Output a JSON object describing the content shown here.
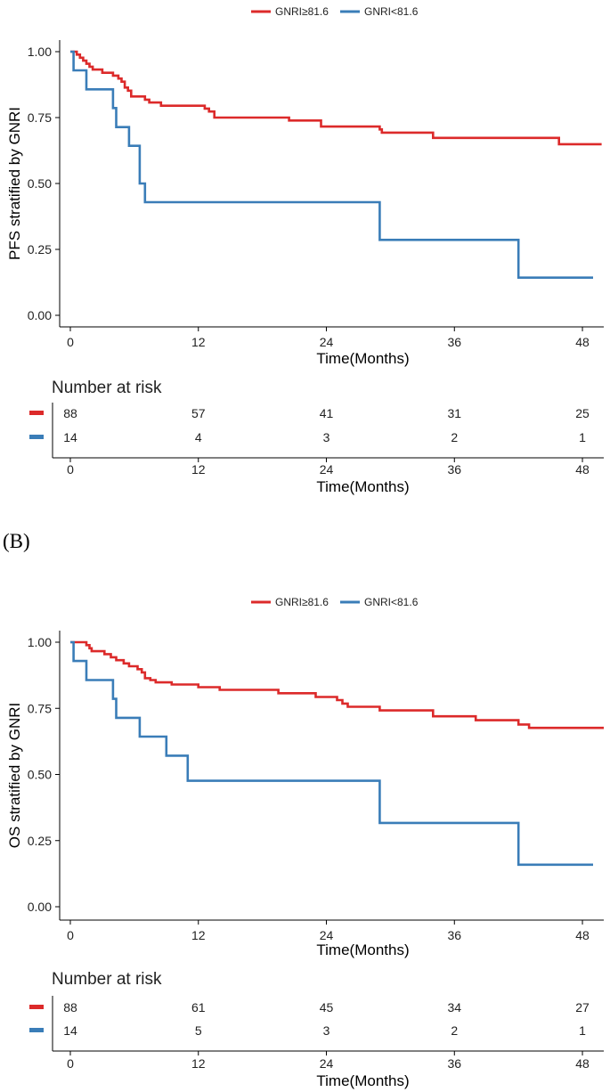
{
  "panel_b_label": "(B)",
  "colors": {
    "high": "#dc2a2a",
    "low": "#3a7db8",
    "axis": "#000000",
    "text": "#222222"
  },
  "chart_data": [
    {
      "type": "line",
      "subtype": "kaplan-meier",
      "legend_position": "top",
      "ylabel": "PFS stratified by GNRI",
      "xlabel": "Time(Months)",
      "xlim": [
        -1,
        50
      ],
      "ylim": [
        0,
        1
      ],
      "x_ticks": [
        0,
        12,
        24,
        36,
        48
      ],
      "y_ticks": [
        "0.00",
        "0.25",
        "0.50",
        "0.75",
        "1.00"
      ],
      "series": [
        {
          "name": "GNRI≥81.6",
          "color": "#dc2a2a",
          "end": 49.8,
          "steps": [
            [
              0,
              1.0
            ],
            [
              0.6,
              0.989
            ],
            [
              0.9,
              0.977
            ],
            [
              1.2,
              0.966
            ],
            [
              1.5,
              0.954
            ],
            [
              1.8,
              0.943
            ],
            [
              2.1,
              0.932
            ],
            [
              3.0,
              0.92
            ],
            [
              4.0,
              0.909
            ],
            [
              4.5,
              0.898
            ],
            [
              4.8,
              0.886
            ],
            [
              5.1,
              0.864
            ],
            [
              5.4,
              0.852
            ],
            [
              5.7,
              0.83
            ],
            [
              7.0,
              0.818
            ],
            [
              7.4,
              0.807
            ],
            [
              8.5,
              0.795
            ],
            [
              12.6,
              0.784
            ],
            [
              13.0,
              0.773
            ],
            [
              13.5,
              0.75
            ],
            [
              20.5,
              0.739
            ],
            [
              23.5,
              0.716
            ],
            [
              29.0,
              0.705
            ],
            [
              29.2,
              0.693
            ],
            [
              34.0,
              0.673
            ],
            [
              45.8,
              0.649
            ]
          ]
        },
        {
          "name": "GNRI<81.6",
          "color": "#3a7db8",
          "end": 49.0,
          "steps": [
            [
              0,
              1.0
            ],
            [
              0.3,
              0.929
            ],
            [
              1.5,
              0.857
            ],
            [
              4.0,
              0.786
            ],
            [
              4.3,
              0.714
            ],
            [
              5.5,
              0.643
            ],
            [
              6.5,
              0.5
            ],
            [
              7.0,
              0.429
            ],
            [
              29.0,
              0.286
            ],
            [
              42.0,
              0.143
            ]
          ]
        }
      ],
      "risk_table": {
        "title": "Number at risk",
        "xlabel": "Time(Months)",
        "times": [
          0,
          12,
          24,
          36,
          48
        ],
        "rows": [
          {
            "color": "#dc2a2a",
            "counts": [
              "88",
              "57",
              "41",
              "31",
              "25"
            ]
          },
          {
            "color": "#3a7db8",
            "counts": [
              "14",
              "4",
              "3",
              "2",
              "1"
            ]
          }
        ]
      }
    },
    {
      "type": "line",
      "subtype": "kaplan-meier",
      "legend_position": "top",
      "ylabel": "OS stratified by GNRI",
      "xlabel": "Time(Months)",
      "xlim": [
        -1,
        50
      ],
      "ylim": [
        0,
        1
      ],
      "x_ticks": [
        0,
        12,
        24,
        36,
        48
      ],
      "y_ticks": [
        "0.00",
        "0.25",
        "0.50",
        "0.75",
        "1.00"
      ],
      "series": [
        {
          "name": "GNRI≥81.6",
          "color": "#dc2a2a",
          "end": 50.0,
          "steps": [
            [
              0,
              1.0
            ],
            [
              1.5,
              0.989
            ],
            [
              1.8,
              0.977
            ],
            [
              2.0,
              0.966
            ],
            [
              3.2,
              0.955
            ],
            [
              3.8,
              0.943
            ],
            [
              4.3,
              0.932
            ],
            [
              5.0,
              0.92
            ],
            [
              5.5,
              0.909
            ],
            [
              6.3,
              0.898
            ],
            [
              6.7,
              0.886
            ],
            [
              7.0,
              0.864
            ],
            [
              7.5,
              0.857
            ],
            [
              8.0,
              0.848
            ],
            [
              9.5,
              0.84
            ],
            [
              12.0,
              0.83
            ],
            [
              14.0,
              0.82
            ],
            [
              19.5,
              0.807
            ],
            [
              23.0,
              0.793
            ],
            [
              25.0,
              0.781
            ],
            [
              25.5,
              0.768
            ],
            [
              26.0,
              0.756
            ],
            [
              29.0,
              0.742
            ],
            [
              34.0,
              0.72
            ],
            [
              38.0,
              0.705
            ],
            [
              42.0,
              0.689
            ],
            [
              43.0,
              0.676
            ]
          ]
        },
        {
          "name": "GNRI<81.6",
          "color": "#3a7db8",
          "end": 49.0,
          "steps": [
            [
              0,
              1.0
            ],
            [
              0.3,
              0.929
            ],
            [
              1.5,
              0.857
            ],
            [
              4.0,
              0.786
            ],
            [
              4.3,
              0.714
            ],
            [
              6.5,
              0.643
            ],
            [
              9.0,
              0.571
            ],
            [
              11.0,
              0.476
            ],
            [
              29.0,
              0.317
            ],
            [
              42.0,
              0.159
            ]
          ]
        }
      ],
      "risk_table": {
        "title": "Number at risk",
        "xlabel": "Time(Months)",
        "times": [
          0,
          12,
          24,
          36,
          48
        ],
        "rows": [
          {
            "color": "#dc2a2a",
            "counts": [
              "88",
              "61",
              "45",
              "34",
              "27"
            ]
          },
          {
            "color": "#3a7db8",
            "counts": [
              "14",
              "5",
              "3",
              "2",
              "1"
            ]
          }
        ]
      }
    }
  ]
}
